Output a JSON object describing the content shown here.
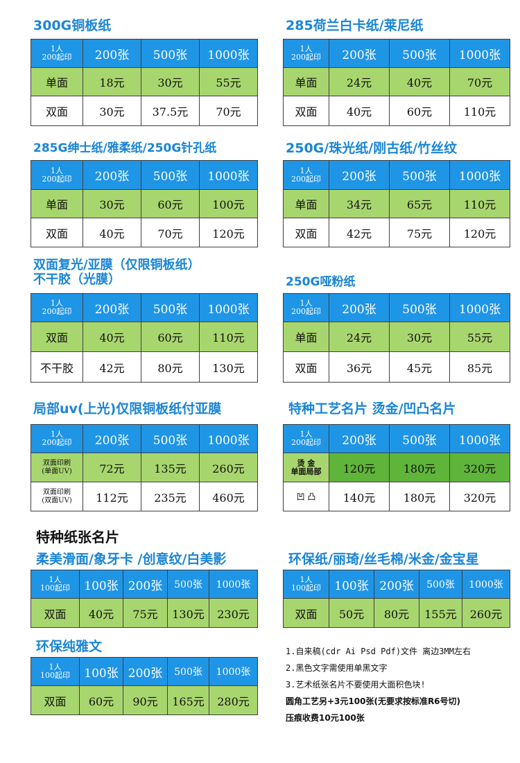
{
  "blocks": [
    {
      "title": "300G铜板纸",
      "head": [
        "1人\n200起印",
        "200张",
        "500张",
        "1000张"
      ],
      "rows": [
        [
          "单面",
          "18元",
          "30元",
          "55元"
        ],
        [
          "双面",
          "30元",
          "37.5元",
          "70元"
        ]
      ]
    },
    {
      "title": "285荷兰白卡纸/莱尼纸",
      "head": [
        "1人\n200起印",
        "200张",
        "500张",
        "1000张"
      ],
      "rows": [
        [
          "单面",
          "24元",
          "40元",
          "70元"
        ],
        [
          "双面",
          "40元",
          "60元",
          "110元"
        ]
      ]
    },
    {
      "title": "285G绅士纸/雅柔纸/250G针孔纸",
      "head": [
        "1人\n200起印",
        "200张",
        "500张",
        "1000张"
      ],
      "rows": [
        [
          "单面",
          "30元",
          "60元",
          "100元"
        ],
        [
          "双面",
          "40元",
          "70元",
          "120元"
        ]
      ]
    },
    {
      "title": "250G/珠光纸/刚古纸/竹丝纹",
      "head": [
        "1人\n200起印",
        "200张",
        "500张",
        "1000张"
      ],
      "rows": [
        [
          "单面",
          "34元",
          "65元",
          "110元"
        ],
        [
          "双面",
          "42元",
          "75元",
          "120元"
        ]
      ]
    },
    {
      "title": "双面复光/亚膜（仅限铜板纸）",
      "title2": "不干胶（光膜）",
      "head": [
        "1人\n200起印",
        "200张",
        "500张",
        "1000张"
      ],
      "rows": [
        [
          "双面",
          "40元",
          "60元",
          "110元"
        ],
        [
          "不干胶",
          "42元",
          "80元",
          "130元"
        ]
      ]
    },
    {
      "title": "250G哑粉纸",
      "head": [
        "1人\n200起印",
        "200张",
        "500张",
        "1000张"
      ],
      "rows": [
        [
          "单面",
          "24元",
          "30元",
          "55元"
        ],
        [
          "双面",
          "36元",
          "45元",
          "85元"
        ]
      ]
    },
    {
      "title": "局部uv(上光)仅限铜板纸付亚膜",
      "head": [
        "1人\n200起印",
        "200张",
        "500张",
        "1000张"
      ],
      "rows": [
        [
          "双面印刷\n(单面UV)",
          "72元",
          "135元",
          "260元"
        ],
        [
          "双面印刷\n(双面UV)",
          "112元",
          "235元",
          "460元"
        ]
      ]
    },
    {
      "title": "特种工艺名片 烫金/凹凸名片",
      "head": [
        "1人\n200起印",
        "200张",
        "500张",
        "1000张"
      ],
      "rows": [
        [
          "烫 金\n单面局部",
          "120元",
          "180元",
          "320元"
        ],
        [
          "凹 凸",
          "140元",
          "180元",
          "320元"
        ]
      ]
    },
    {
      "title": "柔美滑面/象牙卡 /创意纹/白美影",
      "head": [
        "1人\n100起印",
        "100张",
        "200张",
        "500张",
        "1000张"
      ],
      "rows": [
        [
          "双面",
          "40元",
          "75元",
          "130元",
          "230元"
        ]
      ]
    },
    {
      "title": "环保纸/丽琦/丝毛棉/米金/金宝星",
      "head": [
        "1人\n100起印",
        "100张",
        "200张",
        "500张",
        "1000张"
      ],
      "rows": [
        [
          "双面",
          "50元",
          "80元",
          "155元",
          "260元"
        ]
      ]
    },
    {
      "title": "环保纯雅文",
      "head": [
        "1人\n100起印",
        "100张",
        "200张",
        "500张",
        "1000张"
      ],
      "rows": [
        [
          "双面",
          "60元",
          "90元",
          "165元",
          "280元"
        ]
      ]
    }
  ],
  "section_title": "特种纸张名片",
  "notes": [
    "1.自来稿(cdr Ai Psd Pdf)文件 离边3MM左右",
    "2.黑色文字需使用单黑文字",
    "3.艺术纸张名片不要使用大面积色块!",
    "圆角工艺另+3元100张(无要求按标准R6号切)",
    "压痕收费10元100张"
  ],
  "colors": {
    "title_blue": "#1a85d6",
    "header_blue": "#1f95e6",
    "row_green": "#a8d66e",
    "row_green_dark": "#5fb43a"
  }
}
